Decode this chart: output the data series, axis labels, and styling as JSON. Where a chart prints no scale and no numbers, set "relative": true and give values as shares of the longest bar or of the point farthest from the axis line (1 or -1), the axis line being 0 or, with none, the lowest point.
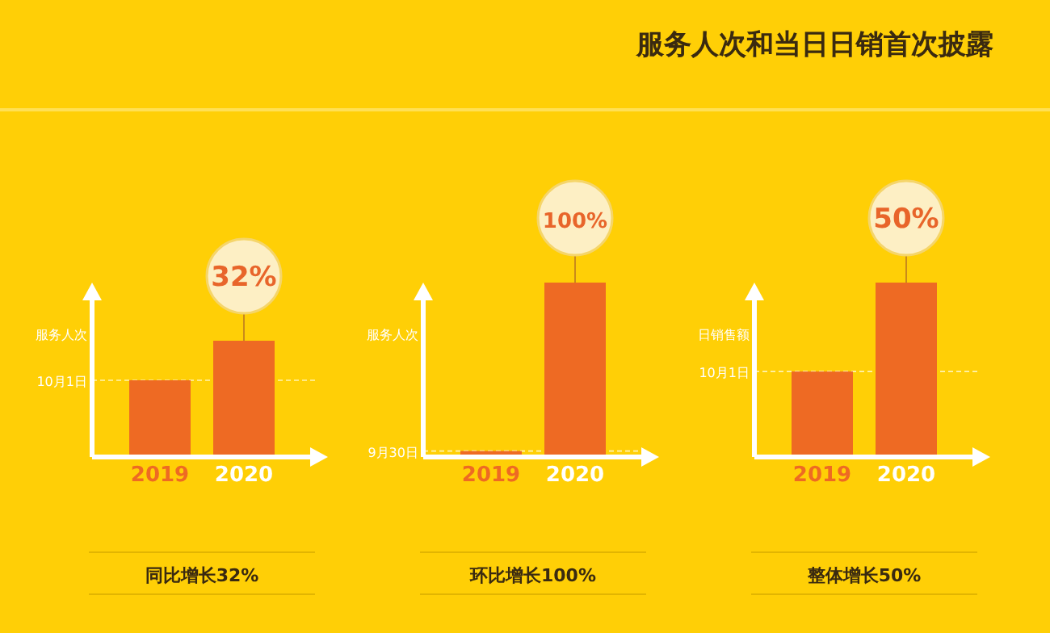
{
  "chart_data": [
    {
      "type": "bar",
      "relative": true,
      "categories": [
        "2019",
        "2020"
      ],
      "values": [
        0.66,
        1
      ],
      "color": "#ee6a23",
      "ylabel": "服务人次",
      "ref_lines": [
        {
          "axis": "y",
          "value": 0.66,
          "label": "10月1日"
        }
      ],
      "annotations": [
        {
          "text": "32%",
          "x": "2020",
          "y": 1
        },
        "同比增长32%"
      ]
    },
    {
      "type": "bar",
      "relative": true,
      "categories": [
        "2019",
        "2020"
      ],
      "values": [
        0.034,
        1
      ],
      "color": "#ee6a23",
      "ylabel": "服务人次",
      "ref_lines": [
        {
          "axis": "y",
          "value": 0.034,
          "label": "9月30日"
        }
      ],
      "annotations": [
        {
          "text": "100%",
          "x": "2020",
          "y": 1
        },
        "环比增长100%"
      ]
    },
    {
      "type": "bar",
      "title": "服务人次和当日日销首次披露",
      "relative": true,
      "categories": [
        "2019",
        "2020"
      ],
      "values": [
        0.49,
        1
      ],
      "color": "#ee6a23",
      "ylabel": "日销售额",
      "ref_lines": [
        {
          "axis": "y",
          "value": 0.49,
          "label": "10月1日"
        }
      ],
      "annotations": [
        {
          "text": "50%",
          "x": "2020",
          "y": 1
        },
        "整体增长50%"
      ]
    }
  ]
}
